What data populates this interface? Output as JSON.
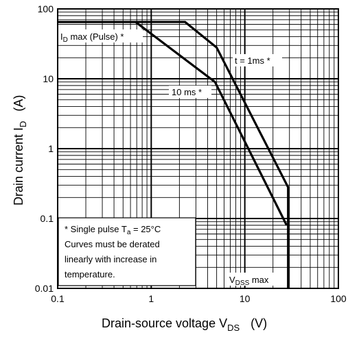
{
  "chart_data": {
    "type": "line",
    "xscale": "log",
    "yscale": "log",
    "xlim": [
      0.1,
      100
    ],
    "ylim": [
      0.01,
      100
    ],
    "grid": true,
    "x_ticks": [
      "0.1",
      "1",
      "10",
      "100"
    ],
    "y_ticks": [
      "100",
      "10",
      "1",
      "0.1",
      "0.01"
    ],
    "xlabel": {
      "main": "Drain-source voltage  V",
      "sub": "DS",
      "unit": "(V)"
    },
    "ylabel": {
      "main": "Drain current  I",
      "sub": "D",
      "unit": "(A)"
    },
    "series": [
      {
        "name": "t = 1ms *",
        "x": [
          0.1,
          2.3,
          5.0,
          29.0,
          29.0
        ],
        "y": [
          65,
          65,
          28,
          0.28,
          0.01
        ]
      },
      {
        "name": "10 ms *",
        "x": [
          0.1,
          0.68,
          4.8,
          28.0
        ],
        "y": [
          65,
          65,
          9,
          0.08
        ]
      }
    ],
    "annotations": {
      "id_max": {
        "main": "I",
        "sub": "D",
        "rest": " max (Pulse) *"
      },
      "t1ms": "t = 1ms *",
      "t10ms": "10 ms *",
      "vdss": {
        "main": "V",
        "sub": "DSS",
        "rest": " max"
      }
    },
    "note": {
      "line1_main": "* Single pulse  T",
      "line1_sub": "a",
      "line1_rest": " = 25°C",
      "line2": "Curves must be derated",
      "line3": "linearly with increase in",
      "line4": "temperature."
    }
  }
}
